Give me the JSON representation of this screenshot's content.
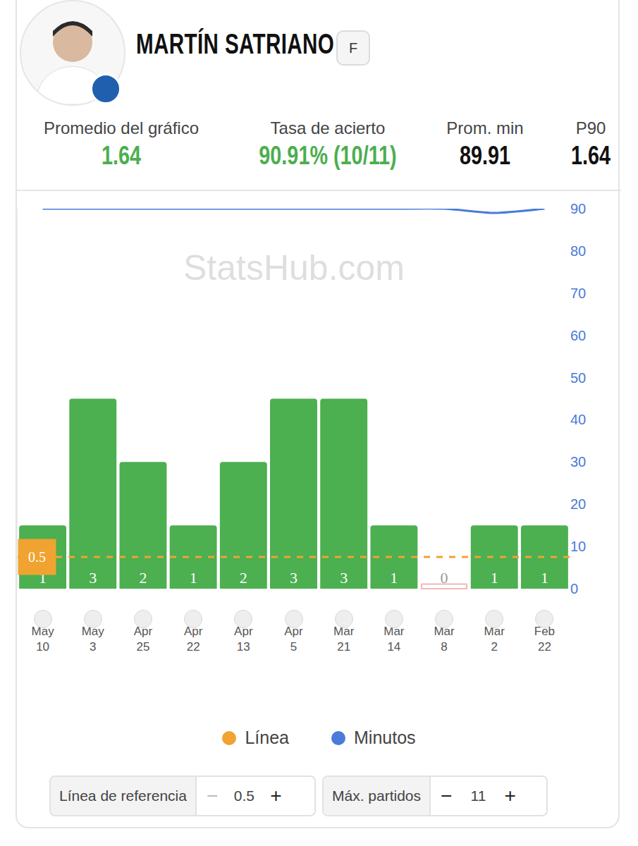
{
  "header": {
    "name": "MARTÍN SATRIANO",
    "badge": "F"
  },
  "stats": [
    {
      "label": "Promedio del gráfico",
      "value": "1.64",
      "color": "#4cae4f"
    },
    {
      "label": "Tasa de acierto",
      "value": "90.91% (10/11)",
      "color": "#4cae4f"
    },
    {
      "label": "Prom. min",
      "value": "89.91",
      "color": "#111111"
    },
    {
      "label": "P90",
      "value": "1.64",
      "color": "#111111"
    }
  ],
  "chart_data": {
    "type": "bar",
    "watermark": "StatsHub.com",
    "categories": [
      "May 10",
      "May 3",
      "Apr 25",
      "Apr 22",
      "Apr 13",
      "Apr 5",
      "Mar 21",
      "Mar 14",
      "Mar 8",
      "Mar 2",
      "Feb 22"
    ],
    "values": [
      1,
      3,
      2,
      1,
      2,
      3,
      3,
      1,
      0,
      1,
      1
    ],
    "colors": [
      "#4caf50",
      "#4caf50",
      "#4caf50",
      "#4caf50",
      "#4caf50",
      "#4caf50",
      "#4caf50",
      "#4caf50",
      "#f2b8bb",
      "#4caf50",
      "#4caf50"
    ],
    "data_labels": true,
    "ylim": [
      0,
      6
    ],
    "reference_line": {
      "name": "Línea",
      "value": 0.5,
      "color": "#f0a330",
      "line_style": "dashed"
    },
    "series": [
      {
        "name": "Minutos",
        "type": "line",
        "axis": "y2",
        "color": "#4a7bd8",
        "values": [
          90,
          90,
          90,
          90,
          90,
          90,
          90,
          90,
          90,
          89,
          90
        ]
      }
    ],
    "y2lim": [
      0,
      90
    ],
    "y2ticks": [
      0,
      10,
      20,
      30,
      40,
      50,
      60,
      70,
      80,
      90
    ],
    "grid": false,
    "legend": "bottom"
  },
  "controls": [
    {
      "label": "Línea de referencia",
      "value": "0.5",
      "minus": "−",
      "plus": "+"
    },
    {
      "label": "Máx. partidos",
      "value": "11",
      "minus": "−",
      "plus": "+"
    }
  ]
}
